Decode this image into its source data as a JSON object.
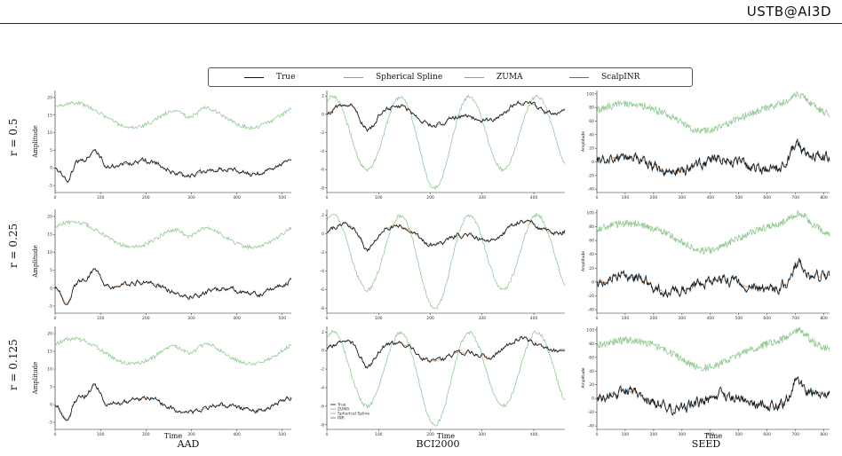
{
  "header": {
    "brand": "USTB@AI3D"
  },
  "legend": {
    "items": [
      {
        "label": "True",
        "color": "#111111"
      },
      {
        "label": "Spherical Spline",
        "color": "#e0823d"
      },
      {
        "label": "ZUMA",
        "color": "#6db86d"
      },
      {
        "label": "ScalpINR",
        "color": "#2f78a8"
      }
    ]
  },
  "rows": [
    {
      "label": "r = 0.5"
    },
    {
      "label": "r = 0.25"
    },
    {
      "label": "r = 0.125"
    }
  ],
  "columns": [
    {
      "label": "AAD"
    },
    {
      "label": "BCI2000"
    },
    {
      "label": "SEED"
    }
  ],
  "axis_titles": {
    "time": "Time",
    "amplitude": "Amplitude"
  },
  "inset_legend": [
    "True",
    "ZUMA",
    "Spherical Spline",
    "INR"
  ],
  "chart_data": [
    {
      "type": "line",
      "panel": "AAD r=0.5",
      "xlim": [
        0,
        520
      ],
      "ylim": [
        -7,
        22
      ],
      "yticks": [
        -5,
        0,
        5,
        10,
        15,
        20
      ],
      "xticks": [
        0,
        100,
        200,
        300,
        400,
        500
      ],
      "ylabel": "Amplitude"
    },
    {
      "type": "line",
      "panel": "BCI2000 r=0.5",
      "xlim": [
        0,
        460
      ],
      "ylim": [
        -8.5,
        2.6
      ],
      "yticks": [
        -8,
        -6,
        -4,
        -2,
        0,
        2
      ],
      "xticks": [
        0,
        100,
        200,
        300,
        400
      ]
    },
    {
      "type": "line",
      "panel": "SEED r=0.5",
      "xlim": [
        0,
        820
      ],
      "ylim": [
        -45,
        105
      ],
      "yticks": [
        -40,
        -20,
        0,
        20,
        40,
        60,
        80,
        100
      ],
      "xticks": [
        0,
        100,
        200,
        300,
        400,
        500,
        600,
        700,
        800
      ],
      "ylabel": "Amplitude"
    },
    {
      "type": "line",
      "panel": "AAD r=0.25",
      "xlim": [
        0,
        520
      ],
      "ylim": [
        -7,
        22
      ],
      "yticks": [
        -5,
        0,
        5,
        10,
        15,
        20
      ],
      "xticks": [
        0,
        100,
        200,
        300,
        400,
        500
      ],
      "ylabel": "Amplitude"
    },
    {
      "type": "line",
      "panel": "BCI2000 r=0.25",
      "xlim": [
        0,
        460
      ],
      "ylim": [
        -8.5,
        2.6
      ],
      "yticks": [
        -8,
        -6,
        -4,
        -2,
        0,
        2
      ],
      "xticks": [
        0,
        100,
        200,
        300,
        400
      ]
    },
    {
      "type": "line",
      "panel": "SEED r=0.25",
      "xlim": [
        0,
        820
      ],
      "ylim": [
        -45,
        105
      ],
      "yticks": [
        -40,
        -20,
        0,
        20,
        40,
        60,
        80,
        100
      ],
      "xticks": [
        0,
        100,
        200,
        300,
        400,
        500,
        600,
        700,
        800
      ],
      "ylabel": "Amplitude"
    },
    {
      "type": "line",
      "panel": "AAD r=0.125",
      "xlim": [
        0,
        520
      ],
      "ylim": [
        -7,
        22
      ],
      "yticks": [
        -5,
        0,
        5,
        10,
        15,
        20
      ],
      "xticks": [
        0,
        100,
        200,
        300,
        400,
        500
      ],
      "xlabel": "Time",
      "ylabel": "Amplitude"
    },
    {
      "type": "line",
      "panel": "BCI2000 r=0.125",
      "xlim": [
        0,
        460
      ],
      "ylim": [
        -8.5,
        2.6
      ],
      "yticks": [
        -8,
        -6,
        -4,
        -2,
        0,
        2
      ],
      "xticks": [
        0,
        100,
        200,
        300,
        400
      ],
      "xlabel": "Time"
    },
    {
      "type": "line",
      "panel": "SEED r=0.125",
      "xlim": [
        0,
        820
      ],
      "ylim": [
        -45,
        105
      ],
      "yticks": [
        -40,
        -20,
        0,
        20,
        40,
        60,
        80,
        100
      ],
      "xticks": [
        0,
        100,
        200,
        300,
        400,
        500,
        600,
        700,
        800
      ],
      "xlabel": "Time",
      "ylabel": "Amplitude"
    }
  ]
}
